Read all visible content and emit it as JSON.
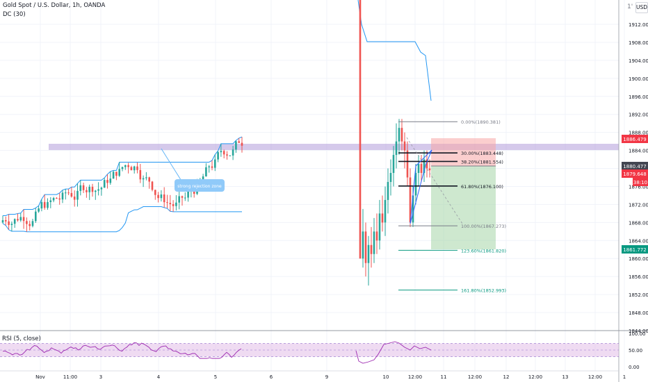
{
  "header": {
    "symbol_line": "Gold Spot / U.S. Dollar, 1h, OANDA",
    "indicator_line": "DC (30)",
    "currency": "USD",
    "top_price_partial": "1'"
  },
  "price_axis": {
    "ticks": [
      "1912.000",
      "1908.000",
      "1904.000",
      "1900.000",
      "1896.000",
      "1892.000",
      "1888.000",
      "1884.000",
      "1880.000",
      "1876.000",
      "1872.000",
      "1868.000",
      "1864.000",
      "1860.000",
      "1856.000",
      "1852.000",
      "1848.000",
      "1844.000"
    ],
    "badges": [
      {
        "label": "1886.479",
        "color": "#f23645"
      },
      {
        "label": "1880.477",
        "color": "#434651"
      },
      {
        "label": "1879.648",
        "color": "#f23645"
      },
      {
        "label": "38:10",
        "color": "#f23645"
      },
      {
        "label": "1861.772",
        "color": "#089981"
      }
    ]
  },
  "time_axis": [
    "Nov",
    "11:00",
    "3",
    "4",
    "5",
    "6",
    "9",
    "10",
    "12:00",
    "11",
    "12:00",
    "12",
    "12:00",
    "13",
    "12:00",
    "1"
  ],
  "annotation": {
    "text": "strong rejection zone"
  },
  "fibonacci": [
    {
      "label": "0.00%(1890.381)",
      "price": 1890.381
    },
    {
      "label": "30.00%(1883.448)",
      "price": 1883.448
    },
    {
      "label": "38.20%(1881.554)",
      "price": 1881.554
    },
    {
      "label": "61.80%(1876.100)",
      "price": 1876.1
    },
    {
      "label": "100.00%(1867.273)",
      "price": 1867.273
    },
    {
      "label": "123.60%(1861.820)",
      "price": 1861.82
    },
    {
      "label": "161.80%(1852.993)",
      "price": 1852.993
    }
  ],
  "position": {
    "stop_price": 1886.479,
    "entry_price": 1880.477,
    "target_price": 1861.772
  },
  "rsi": {
    "title": "RSI (5, close)",
    "ticks": [
      "100.00",
      "50.00",
      "0.00"
    ],
    "levels": [
      100,
      70,
      50,
      30,
      0
    ],
    "band": [
      30,
      70
    ]
  },
  "colors": {
    "up": "#26a69a",
    "down": "#ef5350",
    "donchian": "#2196f3",
    "zone": "#b39ddb",
    "rsi_line": "#9c27b0",
    "rsi_band": "#e1bee7",
    "annotation": "#90caf9"
  }
}
